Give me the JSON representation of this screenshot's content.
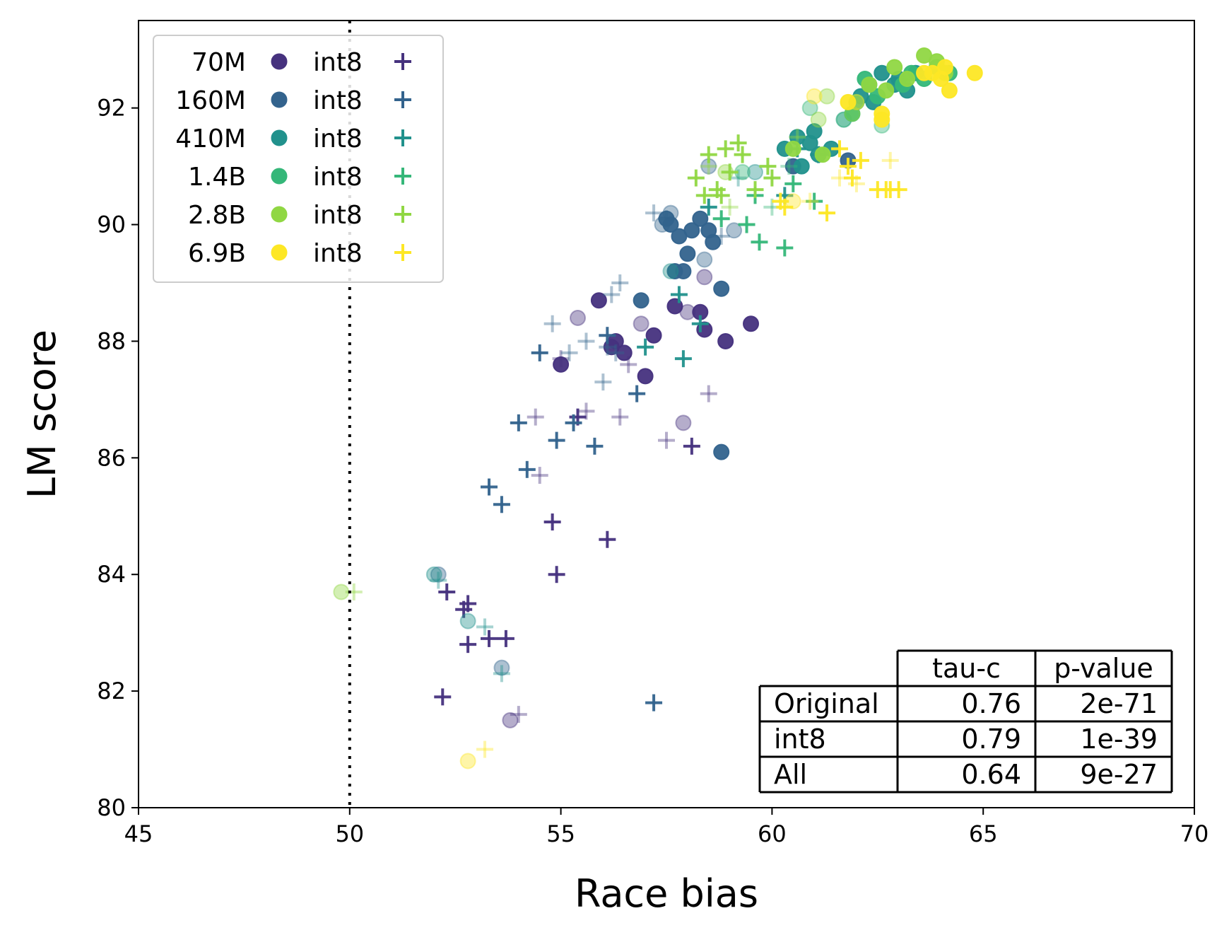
{
  "chart_data": {
    "type": "scatter",
    "title": "",
    "xlabel": "Race bias",
    "ylabel": "LM score",
    "xlim": [
      45,
      70
    ],
    "ylim": [
      80,
      93.5
    ],
    "xticks": [
      45,
      50,
      55,
      60,
      65,
      70
    ],
    "yticks": [
      80,
      82,
      84,
      86,
      88,
      90,
      92
    ],
    "reference_line": {
      "x": 50,
      "style": "dotted"
    },
    "grid": false,
    "legend_position": "top-left",
    "legend_rows": [
      {
        "size": "70M",
        "quant": "int8",
        "color": "#46327e"
      },
      {
        "size": "160M",
        "quant": "int8",
        "color": "#33638d"
      },
      {
        "size": "410M",
        "quant": "int8",
        "color": "#21918c"
      },
      {
        "size": "1.4B",
        "quant": "int8",
        "color": "#35b779"
      },
      {
        "size": "2.8B",
        "quant": "int8",
        "color": "#90d743"
      },
      {
        "size": "6.9B",
        "quant": "int8",
        "color": "#fde725"
      }
    ],
    "stats_table": {
      "headers": [
        "",
        "tau-c",
        "p-value"
      ],
      "rows": [
        [
          "Original",
          "0.76",
          "2e-71"
        ],
        [
          "int8",
          "0.79",
          "1e-39"
        ],
        [
          "All",
          "0.64",
          "9e-27"
        ]
      ]
    },
    "series": [
      {
        "name": "70M",
        "marker": "circle",
        "color": "#46327e",
        "x": [
          55.0,
          55.9,
          56.2,
          56.3,
          56.5,
          57.0,
          57.2,
          57.7,
          58.3,
          58.4,
          58.9,
          59.5
        ],
        "y": [
          87.6,
          88.7,
          87.9,
          88.0,
          87.8,
          87.4,
          88.1,
          88.6,
          88.5,
          88.2,
          88.0,
          88.3
        ]
      },
      {
        "name": "70M-faded",
        "marker": "circle",
        "color": "#46327e",
        "faded": true,
        "x": [
          55.4,
          56.9,
          58.0,
          58.4,
          57.9,
          53.8
        ],
        "y": [
          88.4,
          88.3,
          88.5,
          89.1,
          86.6,
          81.5
        ]
      },
      {
        "name": "70M int8",
        "marker": "plus",
        "color": "#46327e",
        "x": [
          52.2,
          52.3,
          52.7,
          52.8,
          52.8,
          53.3,
          53.7,
          55.4,
          54.9,
          54.8,
          56.1,
          58.1
        ],
        "y": [
          81.9,
          83.7,
          83.4,
          82.8,
          83.5,
          82.9,
          82.9,
          86.7,
          84.0,
          84.9,
          84.6,
          86.2
        ]
      },
      {
        "name": "70M int8-faded",
        "marker": "plus",
        "color": "#46327e",
        "faded": true,
        "x": [
          54.4,
          54.5,
          55.6,
          56.4,
          56.6,
          57.5,
          58.5,
          54.0,
          55.0
        ],
        "y": [
          86.7,
          85.7,
          86.8,
          86.7,
          87.6,
          86.3,
          87.1,
          81.6,
          87.7
        ]
      },
      {
        "name": "160M",
        "marker": "circle",
        "color": "#33638d",
        "x": [
          56.9,
          58.8,
          58.8,
          57.5,
          57.6,
          57.8,
          58.1,
          58.3,
          58.0,
          57.7,
          57.9,
          58.5,
          58.6,
          60.5,
          61.8
        ],
        "y": [
          88.7,
          88.9,
          86.1,
          90.1,
          90.0,
          89.8,
          89.9,
          90.1,
          89.5,
          89.2,
          89.2,
          89.9,
          89.7,
          91.0,
          91.1
        ]
      },
      {
        "name": "160M-faded",
        "marker": "circle",
        "color": "#33638d",
        "faded": true,
        "x": [
          57.6,
          58.4,
          58.5,
          59.1,
          53.6,
          52.1,
          57.4
        ],
        "y": [
          90.2,
          89.4,
          91.0,
          89.9,
          82.4,
          84.0,
          90.0
        ]
      },
      {
        "name": "160M int8",
        "marker": "plus",
        "color": "#33638d",
        "x": [
          53.3,
          53.6,
          54.0,
          54.2,
          54.9,
          55.8,
          56.1,
          56.8,
          57.2,
          54.5,
          55.3
        ],
        "y": [
          85.5,
          85.2,
          86.6,
          85.8,
          86.3,
          86.2,
          88.1,
          87.1,
          81.8,
          87.8,
          86.6
        ]
      },
      {
        "name": "160M int8-faded",
        "marker": "plus",
        "color": "#33638d",
        "faded": true,
        "x": [
          54.8,
          55.2,
          55.6,
          56.0,
          56.2,
          56.4,
          57.2,
          57.5,
          58.8,
          56.1,
          56.3
        ],
        "y": [
          88.3,
          87.8,
          88.0,
          87.3,
          88.8,
          89.0,
          90.2,
          90.1,
          89.8,
          87.9,
          87.8
        ]
      },
      {
        "name": "410M",
        "marker": "circle",
        "color": "#21918c",
        "x": [
          60.3,
          60.6,
          60.9,
          61.1,
          61.4,
          61.0,
          60.7,
          62.1,
          62.3,
          62.6,
          63.0,
          63.2,
          63.4,
          62.9,
          62.4
        ],
        "y": [
          91.3,
          91.5,
          91.4,
          91.2,
          91.3,
          91.6,
          91.0,
          92.2,
          92.4,
          92.6,
          92.5,
          92.3,
          92.6,
          92.4,
          92.1
        ]
      },
      {
        "name": "410M-faded",
        "marker": "circle",
        "color": "#21918c",
        "faded": true,
        "x": [
          59.6,
          57.6,
          61.7,
          52.0,
          52.8
        ],
        "y": [
          90.9,
          89.2,
          91.8,
          84.0,
          83.2
        ]
      },
      {
        "name": "410M int8",
        "marker": "plus",
        "color": "#21918c",
        "x": [
          57.0,
          57.8,
          57.9,
          58.3,
          58.5,
          60.3,
          60.6,
          61.1
        ],
        "y": [
          87.9,
          88.8,
          87.7,
          88.3,
          90.3,
          90.5,
          91.3,
          91.2
        ]
      },
      {
        "name": "410M int8-faded",
        "marker": "plus",
        "color": "#21918c",
        "faded": true,
        "x": [
          52.1,
          53.2,
          53.6,
          59.2
        ],
        "y": [
          83.9,
          83.1,
          82.3,
          90.8
        ]
      },
      {
        "name": "1.4B",
        "marker": "circle",
        "color": "#35b779",
        "x": [
          62.2,
          62.5,
          63.1,
          63.3,
          63.6,
          63.9,
          64.2,
          62.0,
          61.9
        ],
        "y": [
          92.5,
          92.2,
          92.4,
          92.6,
          92.5,
          92.7,
          92.6,
          92.1,
          91.9
        ]
      },
      {
        "name": "1.4B-faded",
        "marker": "circle",
        "color": "#35b779",
        "faded": true,
        "x": [
          61.7,
          62.6,
          60.9,
          59.3
        ],
        "y": [
          91.8,
          91.7,
          92.0,
          90.9
        ]
      },
      {
        "name": "1.4B int8",
        "marker": "plus",
        "color": "#35b779",
        "x": [
          59.4,
          59.7,
          60.3,
          59.6,
          60.5,
          61.0,
          58.8
        ],
        "y": [
          90.0,
          89.7,
          89.6,
          90.5,
          90.7,
          90.4,
          90.1
        ]
      },
      {
        "name": "1.4B int8-faded",
        "marker": "plus",
        "color": "#35b779",
        "faded": true,
        "x": [
          60.0,
          60.4
        ],
        "y": [
          90.3,
          91.0
        ]
      },
      {
        "name": "2.8B",
        "marker": "circle",
        "color": "#90d743",
        "x": [
          62.9,
          63.2,
          63.6,
          63.9,
          64.1,
          62.7,
          62.3,
          60.5,
          61.2
        ],
        "y": [
          92.7,
          92.5,
          92.9,
          92.8,
          92.6,
          92.3,
          92.4,
          91.3,
          91.2
        ]
      },
      {
        "name": "2.8B-faded",
        "marker": "circle",
        "color": "#90d743",
        "faded": true,
        "x": [
          61.3,
          61.9,
          58.9,
          49.8,
          61.1
        ],
        "y": [
          92.2,
          91.9,
          90.9,
          83.7,
          91.8
        ]
      },
      {
        "name": "2.8B int8",
        "marker": "plus",
        "color": "#90d743",
        "x": [
          58.2,
          58.5,
          58.7,
          58.9,
          59.2,
          59.6,
          59.9,
          58.8,
          59.0,
          58.4,
          59.3,
          60.0
        ],
        "y": [
          90.8,
          91.2,
          90.6,
          91.3,
          91.4,
          90.6,
          91.0,
          90.5,
          90.9,
          90.5,
          91.2,
          90.8
        ]
      },
      {
        "name": "2.8B int8-faded",
        "marker": "plus",
        "color": "#90d743",
        "faded": true,
        "x": [
          50.1,
          58.5,
          59.0,
          60.6
        ],
        "y": [
          83.7,
          91.0,
          90.3,
          91.5
        ]
      },
      {
        "name": "6.9B",
        "marker": "circle",
        "color": "#fde725",
        "x": [
          63.8,
          64.0,
          64.2,
          64.8,
          62.6,
          62.6,
          61.8,
          63.6,
          64.1
        ],
        "y": [
          92.6,
          92.5,
          92.3,
          92.6,
          91.9,
          91.8,
          92.1,
          92.6,
          92.7
        ]
      },
      {
        "name": "6.9B-faded",
        "marker": "circle",
        "color": "#fde725",
        "faded": true,
        "x": [
          61.0,
          62.0,
          52.8,
          60.5
        ],
        "y": [
          92.2,
          92.1,
          80.8,
          90.4
        ]
      },
      {
        "name": "6.9B int8",
        "marker": "plus",
        "color": "#fde725",
        "x": [
          61.9,
          62.1,
          62.5,
          62.8,
          63.0,
          62.7,
          61.3,
          60.3,
          60.2,
          61.6,
          61.8
        ],
        "y": [
          90.8,
          91.1,
          90.6,
          90.6,
          90.6,
          90.6,
          90.2,
          90.3,
          90.4,
          91.3,
          91.0
        ]
      },
      {
        "name": "6.9B int8-faded",
        "marker": "plus",
        "color": "#fde725",
        "faded": true,
        "x": [
          53.2,
          62.0,
          62.8,
          61.6,
          60.9
        ],
        "y": [
          81.0,
          90.7,
          91.1,
          90.8,
          90.4
        ]
      }
    ]
  }
}
